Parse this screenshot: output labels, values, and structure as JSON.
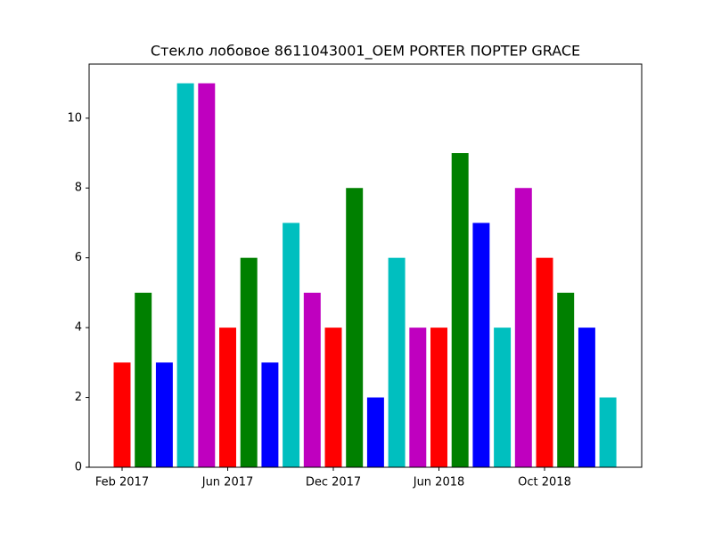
{
  "chart_data": {
    "type": "bar",
    "title": "Стекло лобовое 8611043001_OEM PORTER ПОРТЕР GRACE",
    "categories": [
      "Feb 2017",
      null,
      null,
      null,
      null,
      "Jun 2017",
      null,
      null,
      null,
      null,
      "Dec 2017",
      null,
      null,
      null,
      null,
      "Jun 2018",
      null,
      null,
      null,
      null,
      "Oct 2018",
      null,
      null,
      null
    ],
    "values": [
      3,
      5,
      3,
      11,
      11,
      4,
      6,
      3,
      7,
      5,
      4,
      8,
      2,
      6,
      4,
      4,
      9,
      7,
      4,
      8,
      6,
      5,
      4,
      2
    ],
    "colors": [
      "#ff0000",
      "#008000",
      "#0000ff",
      "#00bfbf",
      "#bf00bf"
    ],
    "ylim": [
      0,
      11.55
    ],
    "yticks": [
      0,
      2,
      4,
      6,
      8,
      10
    ]
  }
}
